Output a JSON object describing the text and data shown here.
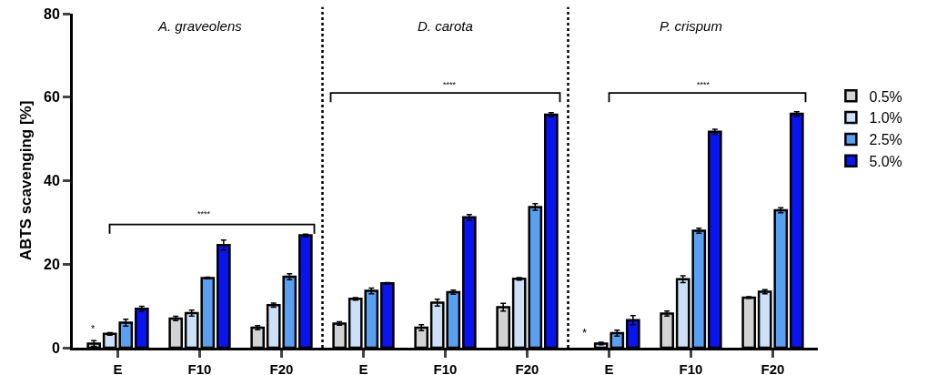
{
  "chart_data": {
    "type": "bar",
    "ylabel": "ABTS scavenging [%]",
    "categories": [
      "E",
      "F10",
      "F20",
      "E",
      "F10",
      "F20",
      "E",
      "F10",
      "F20"
    ],
    "series": [
      {
        "name": "0.5%",
        "color": "#d3d3d3",
        "values": [
          1.0,
          7.0,
          4.8,
          5.8,
          4.8,
          9.7,
          null,
          8.2,
          12.0
        ],
        "errors": [
          0.7,
          0.5,
          0.5,
          0.4,
          0.7,
          0.9,
          null,
          0.6,
          0.2
        ]
      },
      {
        "name": "1.0%",
        "color": "#cce0f8",
        "values": [
          3.3,
          8.3,
          10.2,
          11.7,
          10.8,
          16.5,
          1.0,
          16.4,
          13.4
        ],
        "errors": [
          0.3,
          0.7,
          0.5,
          0.3,
          0.8,
          0.3,
          0.3,
          0.8,
          0.5
        ]
      },
      {
        "name": "2.5%",
        "color": "#5aa0f0",
        "values": [
          6.0,
          16.7,
          17.0,
          13.6,
          13.3,
          33.7,
          3.5,
          28.0,
          32.9
        ],
        "errors": [
          0.8,
          0.2,
          0.7,
          0.7,
          0.5,
          0.8,
          0.7,
          0.6,
          0.6
        ]
      },
      {
        "name": "5.0%",
        "color": "#0a14f0",
        "values": [
          9.3,
          24.6,
          26.9,
          15.4,
          31.2,
          55.8,
          6.6,
          51.7,
          56.0
        ],
        "errors": [
          0.6,
          1.2,
          0.3,
          0.2,
          0.7,
          0.5,
          1.1,
          0.6,
          0.5
        ]
      }
    ],
    "ylim": [
      0,
      80
    ],
    "yticks": [
      0,
      20,
      40,
      60,
      80
    ],
    "grid": false,
    "legend": "right",
    "annotations": [
      "A. graveolens",
      "D. carota",
      "P. crispum",
      "*",
      "****",
      "****",
      "****",
      "*"
    ]
  }
}
